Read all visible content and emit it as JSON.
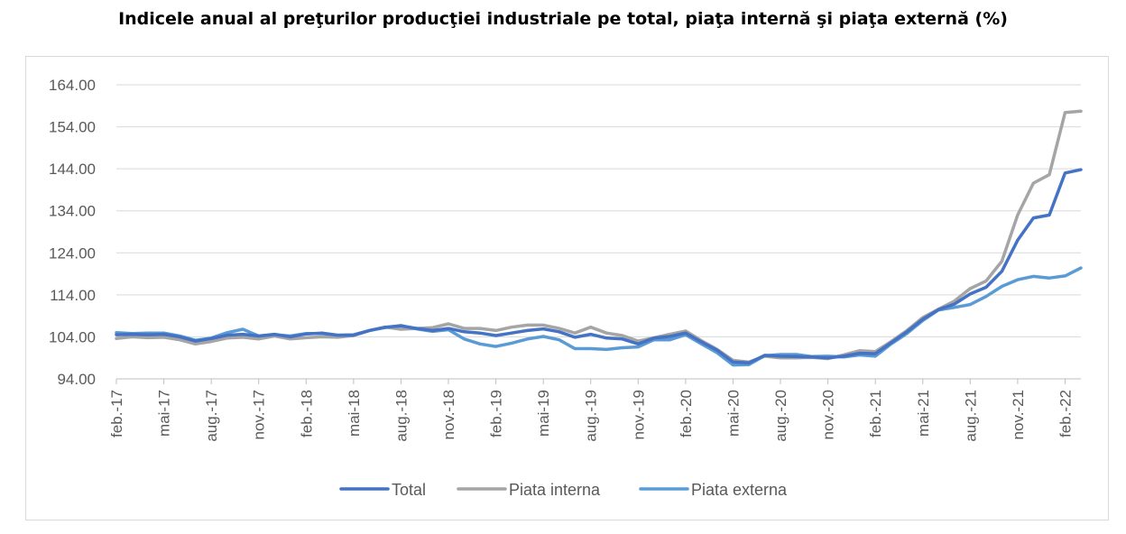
{
  "chart_data": {
    "type": "line",
    "title": "Indicele anual al preţurilor producţiei industriale pe total, piaţa internă şi piaţa externă (%)",
    "xlabel": "",
    "ylabel": "",
    "ylim": [
      94,
      164
    ],
    "yticks": [
      "164.00",
      "154.00",
      "144.00",
      "134.00",
      "124.00",
      "114.00",
      "104.00",
      "94.00"
    ],
    "ytick_values": [
      164,
      154,
      144,
      134,
      124,
      114,
      104,
      94
    ],
    "xtick_labels": [
      "feb.-17",
      "mai-17",
      "aug.-17",
      "nov.-17",
      "feb.-18",
      "mai-18",
      "aug.-18",
      "nov.-18",
      "feb.-19",
      "mai-19",
      "aug.-19",
      "nov.-19",
      "feb.-20",
      "mai-20",
      "aug.-20",
      "nov.-20",
      "feb.-21",
      "mai-21",
      "aug.-21",
      "nov.-21",
      "feb.-22"
    ],
    "grid": "horizontal",
    "legend_position": "bottom",
    "series": [
      {
        "name": "Total",
        "color": "#4472c4",
        "values": [
          104.5,
          104.6,
          104.5,
          104.6,
          104.0,
          103.0,
          103.6,
          104.4,
          104.6,
          104.2,
          104.6,
          104.0,
          104.7,
          104.9,
          104.4,
          104.4,
          105.5,
          106.3,
          106.6,
          106.0,
          105.5,
          106.0,
          105.2,
          104.9,
          104.3,
          104.9,
          105.5,
          105.9,
          105.2,
          103.9,
          104.6,
          103.7,
          103.5,
          102.3,
          103.7,
          104.1,
          104.9,
          102.8,
          100.8,
          98.0,
          97.8,
          99.6,
          99.4,
          99.3,
          99.2,
          99.0,
          99.4,
          100.1,
          100.0,
          102.6,
          105.2,
          108.2,
          110.5,
          111.8,
          114.2,
          115.8,
          119.6,
          127.0,
          132.3,
          133.0,
          143.0,
          143.8
        ]
      },
      {
        "name": "Piata interna",
        "color": "#a5a5a5",
        "values": [
          103.6,
          104.0,
          103.8,
          103.9,
          103.3,
          102.3,
          102.9,
          103.7,
          103.9,
          103.5,
          104.2,
          103.5,
          103.8,
          104.0,
          103.9,
          104.3,
          105.5,
          106.3,
          105.8,
          106.0,
          106.2,
          107.1,
          106.0,
          106.0,
          105.5,
          106.3,
          106.8,
          106.8,
          106.0,
          104.9,
          106.3,
          104.9,
          104.3,
          103.0,
          103.8,
          104.6,
          105.4,
          103.1,
          101.0,
          98.4,
          98.0,
          99.4,
          99.0,
          99.0,
          99.1,
          98.8,
          99.7,
          100.7,
          100.5,
          102.9,
          105.5,
          108.6,
          110.6,
          112.5,
          115.5,
          117.3,
          122.0,
          133.0,
          140.6,
          142.6,
          157.4,
          157.7
        ]
      },
      {
        "name": "Piata externa",
        "color": "#5b9bd5",
        "values": [
          105.0,
          104.8,
          104.9,
          104.9,
          104.2,
          103.2,
          103.7,
          105.0,
          105.8,
          104.2,
          104.5,
          104.2,
          104.8,
          104.8,
          104.4,
          104.5,
          105.5,
          106.2,
          106.7,
          105.9,
          105.3,
          105.7,
          103.5,
          102.3,
          101.7,
          102.5,
          103.5,
          104.1,
          103.3,
          101.2,
          101.2,
          101.0,
          101.4,
          101.6,
          103.3,
          103.3,
          104.5,
          102.3,
          100.2,
          97.3,
          97.4,
          99.5,
          99.8,
          99.8,
          99.3,
          99.4,
          99.2,
          99.7,
          99.4,
          102.3,
          104.8,
          107.9,
          110.4,
          111.0,
          111.7,
          113.6,
          116.0,
          117.6,
          118.4,
          118.0,
          118.5,
          120.4
        ]
      }
    ]
  }
}
